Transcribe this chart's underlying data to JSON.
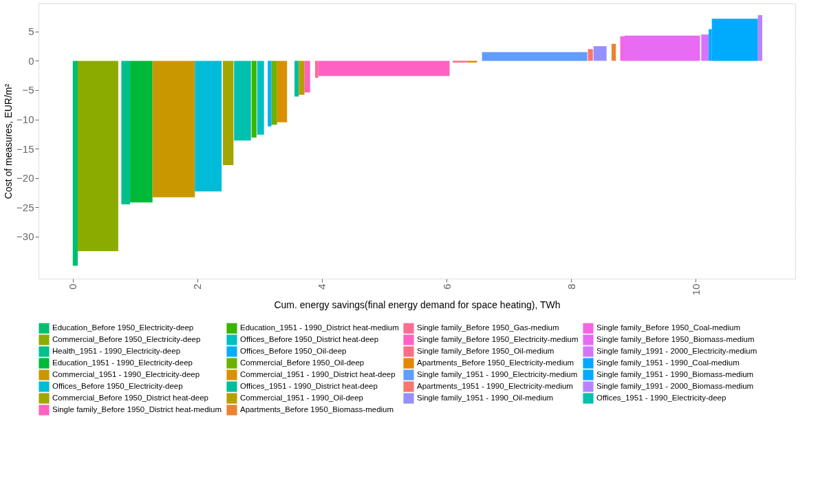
{
  "chart_data": {
    "type": "area",
    "xlabel": "Cum. energy savings(final energy demand for space heating), TWh",
    "ylabel": "Cost of measures, EUR/m²",
    "xlim": [
      -0.55,
      11.6
    ],
    "ylim": [
      -37.2,
      9.8
    ],
    "xticks": [
      0,
      2,
      4,
      6,
      8,
      10
    ],
    "yticks": [
      -30,
      -25,
      -20,
      -15,
      -10,
      -5,
      0,
      5
    ],
    "grid": true,
    "legend": "bottom",
    "series": [
      {
        "name": "Education_Before 1950_Electricity-deep",
        "color": "#00be70",
        "x": [
          0,
          0.08
        ],
        "values": [
          -35,
          -35
        ]
      },
      {
        "name": "Commercial_Before 1950_Electricity-deep",
        "color": "#8cab00",
        "x": [
          0.08,
          0.73
        ],
        "values": [
          -32.5,
          -32.5
        ]
      },
      {
        "name": "Health_1951 - 1990_Electricity-deep",
        "color": "#00c08b",
        "x": [
          0.78,
          0.92
        ],
        "values": [
          -24.5,
          -24.5
        ]
      },
      {
        "name": "Education_1951 - 1990_Electricity-deep",
        "color": "#00b938",
        "x": [
          0.92,
          1.28
        ],
        "values": [
          -24.2,
          -24.2
        ]
      },
      {
        "name": "Commercial_1951 - 1990_Electricity-deep",
        "color": "#c99800",
        "x": [
          1.28,
          1.96
        ],
        "values": [
          -23.3,
          -23.3
        ]
      },
      {
        "name": "Offices_Before 1950_Electricity-deep",
        "color": "#00bcd8",
        "x": [
          1.96,
          2.39
        ],
        "values": [
          -22.3,
          -22.3
        ]
      },
      {
        "name": "Commercial_Before 1950_District heat-deep",
        "color": "#a3a500",
        "x": [
          2.41,
          2.58
        ],
        "values": [
          -17.8,
          -17.8
        ]
      },
      {
        "name": "Offices_1951 - 1990_Electricity-deep",
        "color": "#00c0af",
        "x": [
          2.59,
          2.86
        ],
        "values": [
          -13.6,
          -13.6
        ]
      },
      {
        "name": "Education_1951 - 1990_District heat-medium",
        "color": "#39b600",
        "x": [
          2.87,
          2.95
        ],
        "values": [
          -13.1,
          -13.1
        ]
      },
      {
        "name": "Offices_Before 1950_District heat-deep",
        "color": "#00bfc4",
        "x": [
          2.96,
          3.07
        ],
        "values": [
          -12.6,
          -12.6
        ]
      },
      {
        "name": "Offices_Before 1950_Oil-deep",
        "color": "#00b0f6",
        "x": [
          3.13,
          3.19
        ],
        "values": [
          -11.2,
          -11.2
        ]
      },
      {
        "name": "Commercial_Before 1950_Oil-deep",
        "color": "#6bb100",
        "x": [
          3.19,
          3.28
        ],
        "values": [
          -10.9,
          -10.9
        ]
      },
      {
        "name": "Commercial_1951 - 1990_District heat-deep",
        "color": "#d89000",
        "x": [
          3.28,
          3.44
        ],
        "values": [
          -10.5,
          -10.5
        ]
      },
      {
        "name": "Offices_1951 - 1990_District heat-deep",
        "color": "#00bd9c",
        "x": [
          3.56,
          3.63
        ],
        "values": [
          -6.1,
          -6.1
        ]
      },
      {
        "name": "Commercial_1951 - 1990_Oil-deep",
        "color": "#b79f00",
        "x": [
          3.63,
          3.72
        ],
        "values": [
          -5.8,
          -5.8
        ]
      },
      {
        "name": "Single family_Before 1950_District heat-medium",
        "color": "#ff62bc",
        "x": [
          3.72,
          3.81
        ],
        "values": [
          -5.4,
          -5.4
        ]
      },
      {
        "name": "Single family_Before 1950_Gas-medium",
        "color": "#ff6c91",
        "x": [
          3.89,
          3.94
        ],
        "values": [
          -2.9,
          -2.9
        ]
      },
      {
        "name": "Single family_Before 1950_Electricity-medium",
        "color": "#ff61c3",
        "x": [
          3.94,
          6.05
        ],
        "values": [
          -2.6,
          -2.6
        ]
      },
      {
        "name": "Single family_Before 1950_Oil-medium",
        "color": "#fd6f86",
        "x": [
          6.1,
          6.34
        ],
        "values": [
          -0.3,
          -0.3
        ]
      },
      {
        "name": "Apartments_Before 1950_Electricity-medium",
        "color": "#e58700",
        "x": [
          6.34,
          6.49
        ],
        "values": [
          -0.3,
          -0.3
        ]
      },
      {
        "name": "Single family_1951 - 1990_Electricity-medium",
        "color": "#619cff",
        "x": [
          6.57,
          8.26
        ],
        "values": [
          1.5,
          1.5
        ]
      },
      {
        "name": "Apartments_1951 - 1990_Electricity-medium",
        "color": "#f8766d",
        "x": [
          8.27,
          8.35
        ],
        "values": [
          2,
          2
        ]
      },
      {
        "name": "Single family_1951 - 1990_Oil-medium",
        "color": "#9590ff",
        "x": [
          8.36,
          8.57
        ],
        "values": [
          2.5,
          2.5
        ]
      },
      {
        "name": "Apartments_Before 1950_Biomass-medium",
        "color": "#ea8331",
        "x": [
          8.65,
          8.72
        ],
        "values": [
          2.9,
          2.9
        ]
      },
      {
        "name": "Single family_Before 1950_Coal-medium",
        "color": "#f564e3",
        "x": [
          8.79,
          8.86
        ],
        "values": [
          4.2,
          4.2
        ]
      },
      {
        "name": "Single family_Before 1950_Biomass-medium",
        "color": "#e76bf3",
        "x": [
          8.86,
          10.07
        ],
        "values": [
          4.3,
          4.3
        ]
      },
      {
        "name": "Single family_1991 - 2000_Electricity-medium",
        "color": "#d575fe",
        "x": [
          10.09,
          10.21
        ],
        "values": [
          4.5,
          4.5
        ]
      },
      {
        "name": "Single family_1951 - 1990_Coal-medium",
        "color": "#00a9ff",
        "x": [
          10.21,
          10.26
        ],
        "values": [
          5.4,
          5.4
        ]
      },
      {
        "name": "Single family_1951 - 1990_Biomass-medium",
        "color": "#00abfd",
        "x": [
          10.26,
          11.0
        ],
        "values": [
          7.2,
          7.2
        ]
      },
      {
        "name": "Single family_1991 - 2000_Biomass-medium",
        "color": "#b983ff",
        "x": [
          11.0,
          11.07
        ],
        "values": [
          7.8,
          7.8
        ]
      }
    ]
  }
}
